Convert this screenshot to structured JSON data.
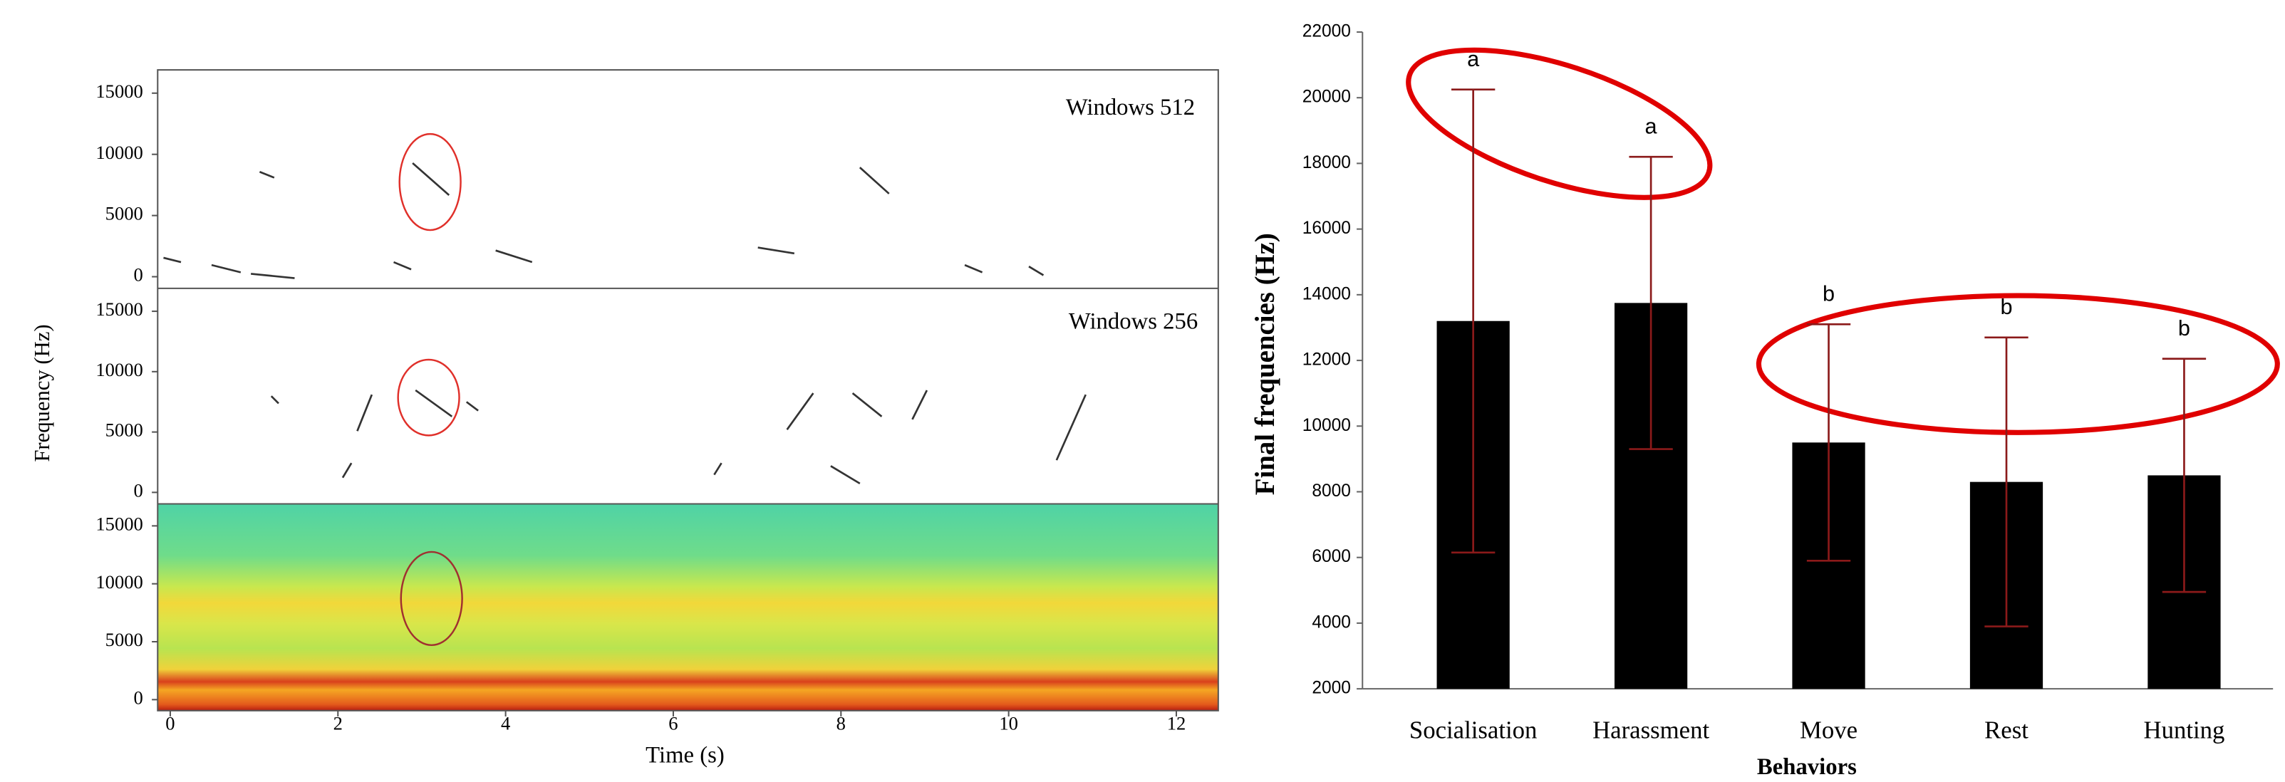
{
  "chart_data": [
    {
      "type": "spectrogram",
      "y_label": "Frequency (Hz)",
      "x_label": "Time (s)",
      "panels": [
        "Windows 512",
        "Windows 256"
      ],
      "xlim": [
        -0.15,
        12.5
      ],
      "xticks": [
        0,
        2,
        4,
        6,
        8,
        10,
        12
      ],
      "ylim": [
        -950,
        16900
      ],
      "yticks": [
        0,
        5000,
        10000,
        15000
      ]
    },
    {
      "type": "bar",
      "x_label": "Behaviors",
      "y_label": "Final frequencies (Hz)",
      "categories": [
        "Socialisation",
        "Harassment",
        "Move",
        "Rest",
        "Hunting"
      ],
      "values": [
        13200,
        13750,
        9500,
        8300,
        8500
      ],
      "errors": [
        7050,
        4450,
        3600,
        4400,
        3550
      ],
      "annotations": [
        "a",
        "a",
        "b",
        "b",
        "b"
      ],
      "color": "#000000",
      "error_color": "#8b1a1a",
      "ylim": [
        2000,
        22000
      ],
      "yticks": [
        2000,
        4000,
        6000,
        8000,
        10000,
        12000,
        14000,
        16000,
        18000,
        20000,
        22000
      ]
    }
  ]
}
